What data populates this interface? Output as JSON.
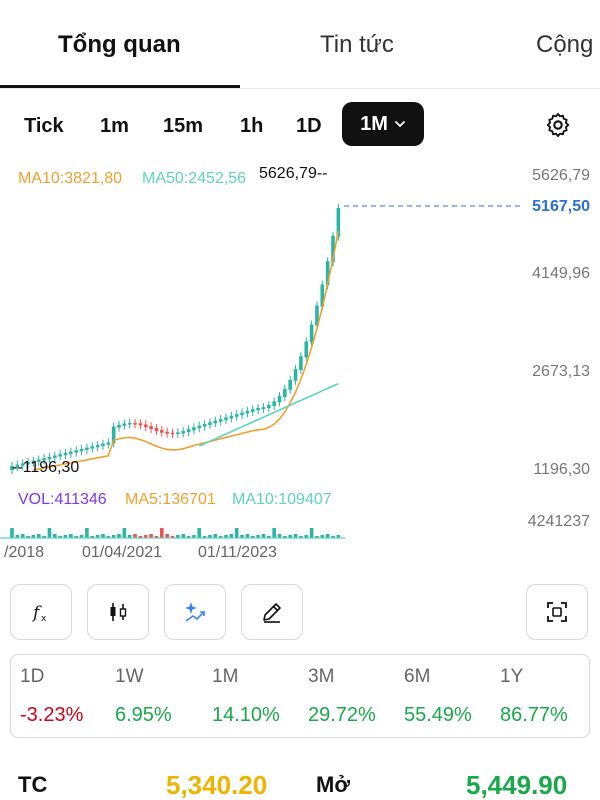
{
  "tabs": [
    {
      "label": "Tổng quan",
      "active": true
    },
    {
      "label": "Tin tức",
      "active": false
    },
    {
      "label": "Cộng",
      "active": false
    }
  ],
  "timeframes": [
    "Tick",
    "1m",
    "15m",
    "1h",
    "1D"
  ],
  "timeframe_selected": "1M",
  "chart_legend": {
    "ma10": "MA10:3821,80",
    "ma50": "MA50:2452,56",
    "high_marker": "5626,79--",
    "low_marker": "--1196,30"
  },
  "price_axis": [
    "5626,79",
    "5167,50",
    "4149,96",
    "2673,13",
    "1196,30"
  ],
  "volume_legend": {
    "vol": "VOL:411346",
    "ma5": "MA5:136701",
    "ma10": "MA10:109407",
    "axis_value": "4241237"
  },
  "date_axis": [
    "/2018",
    "01/04/2021",
    "01/11/2023"
  ],
  "colors": {
    "up": "#2ab5a5",
    "down": "#ef5350",
    "ma10": "#f0a030",
    "ma50": "#5fd3bf",
    "current_price": "#2b6fd6",
    "volume_label": "#7c3aed"
  },
  "chart_data": {
    "type": "candlestick",
    "ylim": [
      1196.3,
      5626.79
    ],
    "current_price": 5167.5,
    "indicators": [
      "MA10",
      "MA50"
    ],
    "volume": {
      "value": 411346,
      "ma5": 136701,
      "ma10": 109407,
      "axis_max": 4241237
    }
  },
  "tools": [
    "fx-icon",
    "candlestick-icon",
    "sparkle-chart-icon",
    "pencil-icon",
    "fullscreen-icon"
  ],
  "performance": [
    {
      "period": "1D",
      "value": "-3.23%",
      "dir": "neg"
    },
    {
      "period": "1W",
      "value": "6.95%",
      "dir": "pos"
    },
    {
      "period": "1M",
      "value": "14.10%",
      "dir": "pos"
    },
    {
      "period": "3M",
      "value": "29.72%",
      "dir": "pos"
    },
    {
      "period": "6M",
      "value": "55.49%",
      "dir": "pos"
    },
    {
      "period": "1Y",
      "value": "86.77%",
      "dir": "pos"
    }
  ],
  "quote": {
    "tc_label": "TC",
    "tc_value": "5,340.20",
    "open_label": "Mở",
    "open_value": "5,449.90"
  }
}
